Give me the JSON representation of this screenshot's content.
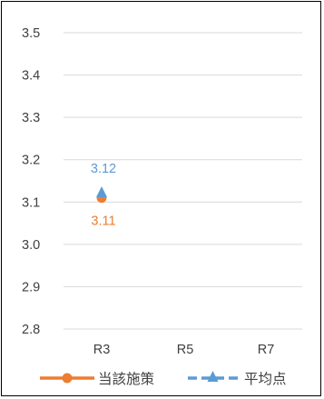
{
  "chart_data": {
    "type": "line",
    "title": "",
    "xlabel": "",
    "ylabel": "",
    "categories": [
      "R3",
      "R5",
      "R7"
    ],
    "ylim": [
      2.8,
      3.5
    ],
    "yticks": [
      "3.5",
      "3.4",
      "3.3",
      "3.2",
      "3.1",
      "3.0",
      "2.9",
      "2.8"
    ],
    "grid": true,
    "legend_position": "bottom",
    "series": [
      {
        "name": "当該施策",
        "values": [
          3.11,
          null,
          null
        ],
        "labels": [
          "3.11",
          "",
          ""
        ],
        "color": "#ED7D31",
        "marker": "circle",
        "line_style": "solid"
      },
      {
        "name": "平均点",
        "values": [
          3.12,
          null,
          null
        ],
        "labels": [
          "3.12",
          "",
          ""
        ],
        "color": "#5B9BD5",
        "marker": "triangle",
        "line_style": "dashed"
      }
    ]
  }
}
